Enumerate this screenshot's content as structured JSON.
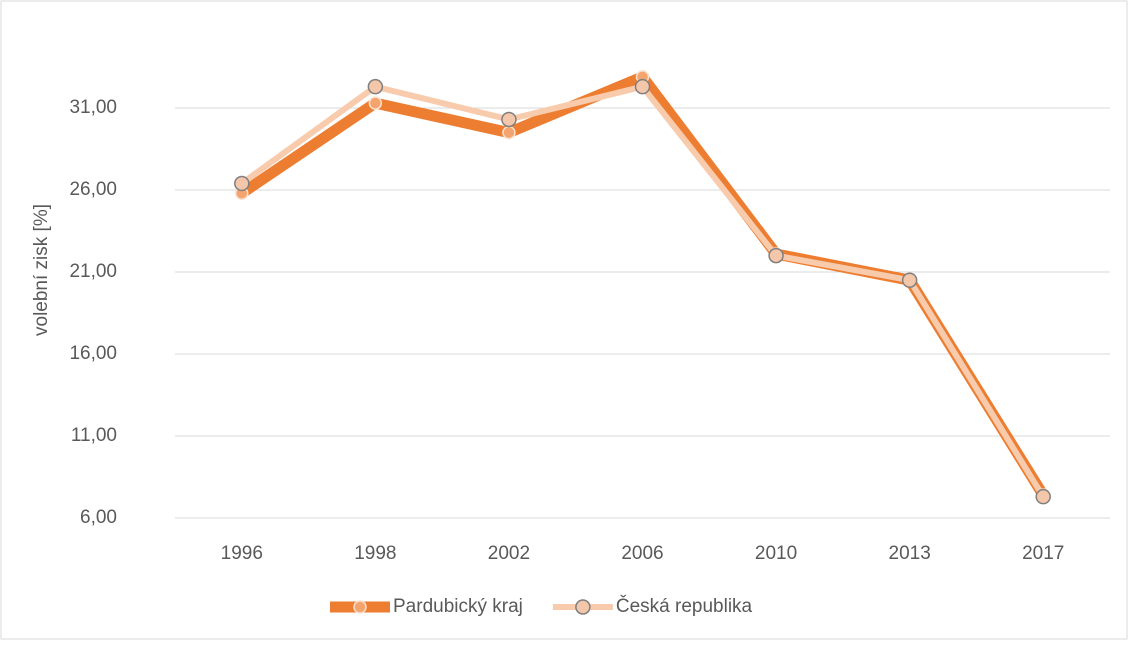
{
  "chart_data": {
    "type": "line",
    "y_label": "volební zisk [%]",
    "categories": [
      "1996",
      "1998",
      "2002",
      "2006",
      "2010",
      "2013",
      "2017"
    ],
    "series": [
      {
        "name": "Pardubický kraj",
        "color": "#ed7d31",
        "values": [
          25.8,
          31.3,
          29.5,
          32.9,
          22.1,
          20.5,
          7.4
        ]
      },
      {
        "name": "Česká republika",
        "color": "#f8cbad",
        "values": [
          26.4,
          32.3,
          30.3,
          32.3,
          22.0,
          20.5,
          7.3
        ]
      }
    ],
    "ylim": [
      6,
      36
    ],
    "yticks": [
      {
        "value": 6,
        "label": "6,00"
      },
      {
        "value": 11,
        "label": "11,00"
      },
      {
        "value": 16,
        "label": "16,00"
      },
      {
        "value": 21,
        "label": "21,00"
      },
      {
        "value": 26,
        "label": "26,00"
      },
      {
        "value": 31,
        "label": "31,00"
      }
    ],
    "grid": true,
    "legend": "bottom"
  }
}
